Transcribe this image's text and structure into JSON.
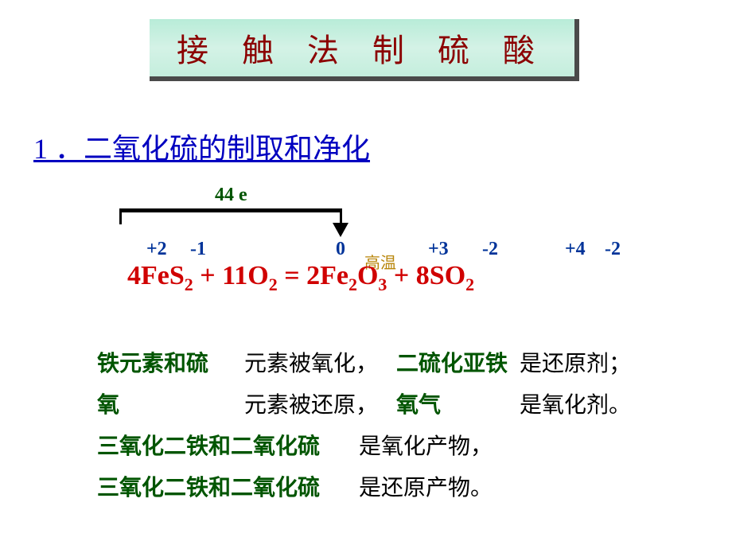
{
  "title": "接 触 法 制 硫 酸",
  "title_colors": {
    "text": "#8b0000",
    "bg_gradient_top": "#b8ecd8",
    "bg_gradient_mid": "#d4f2e6",
    "bg_gradient_bottom": "#c4eedd",
    "shadow": "#4a4a4a"
  },
  "section": {
    "number": "1",
    "heading": "1 ．二氧化硫的制取和净化",
    "color": "#0000c0",
    "fontsize": 36
  },
  "electron_transfer": {
    "label": "44 e",
    "color": "#005500",
    "arrow_color": "#000000"
  },
  "oxidation_states": {
    "color": "#003399",
    "states": [
      "+2",
      "-1",
      "0",
      "+3",
      "-2",
      "+4",
      "-2"
    ]
  },
  "equation": {
    "text_color": "#d00000",
    "condition": "高温",
    "condition_color": "#b8860b",
    "fontsize": 34,
    "parts": {
      "p1": "4FeS",
      "s1": "2",
      "p2": " + 11O",
      "s2": "2",
      "eq": " = ",
      "p3": "2Fe",
      "s3": "2",
      "p4": "O",
      "s4": "3",
      "p5": " + 8SO",
      "s5": "2"
    }
  },
  "analysis": {
    "green_color": "#005500",
    "black_color": "#000000",
    "fontsize": 28,
    "line_height": 52,
    "row1": {
      "a": "铁元素和硫",
      "b": "元素被氧化，",
      "c": "二硫化亚铁",
      "d": "是还原剂；"
    },
    "row2": {
      "a": "氧",
      "b": "元素被还原，",
      "c": "氧气",
      "d": "是氧化剂。"
    },
    "row3": {
      "a": "三氧化二铁和二氧化硫",
      "b": "是氧化产物，"
    },
    "row4": {
      "a": "三氧化二铁和二氧化硫",
      "b": "是还原产物。"
    }
  }
}
